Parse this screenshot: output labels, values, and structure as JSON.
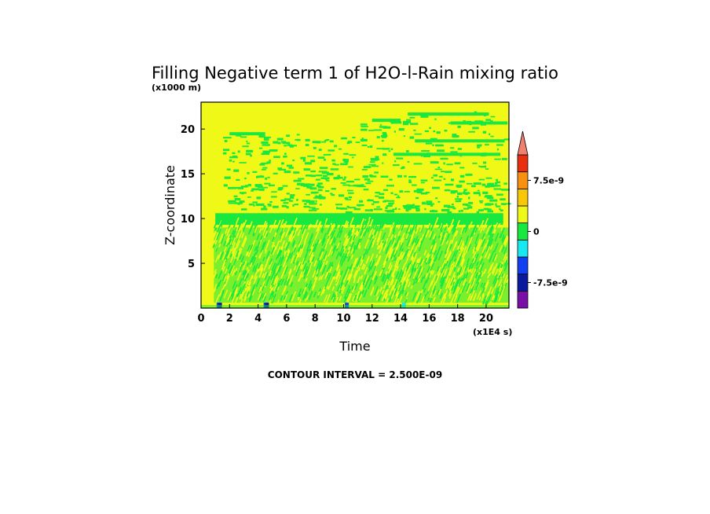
{
  "chart_data": {
    "type": "heatmap",
    "title": "Filling Negative term 1 of H2O-l-Rain mixing ratio",
    "y_scale_label": "(x1000 m)",
    "x_scale_label": "(x1E4 s)",
    "xlabel": "Time",
    "ylabel": "Z-coordinate",
    "xlim": [
      0,
      21.6
    ],
    "ylim": [
      0,
      23
    ],
    "x_ticks": [
      "0",
      "2",
      "4",
      "6",
      "8",
      "10",
      "12",
      "14",
      "16",
      "18",
      "20"
    ],
    "x_tick_values": [
      0,
      2,
      4,
      6,
      8,
      10,
      12,
      14,
      16,
      18,
      20
    ],
    "y_ticks": [
      "5",
      "10",
      "15",
      "20"
    ],
    "y_tick_values": [
      5,
      10,
      15,
      20
    ],
    "contour_interval": "CONTOUR INTERVAL = 2.500E-09",
    "colorbar": {
      "levels": [
        "-1e-8",
        "-7.5e-9",
        "-5e-9",
        "-2.5e-9",
        "0",
        "2.5e-9",
        "5e-9",
        "7.5e-9",
        "1e-8"
      ],
      "colors": [
        "#7a0fa8",
        "#0a1a9e",
        "#1040f0",
        "#18e8f0",
        "#18e840",
        "#f0f818",
        "#f8c808",
        "#f89010",
        "#e83010",
        "#f08070"
      ],
      "labels": [
        "7.5e-9",
        "0",
        "-7.5e-9"
      ],
      "label_values": [
        7.5e-09,
        0,
        -7.5e-09
      ],
      "extend": "max"
    },
    "background_value_color": "#f0f818",
    "band_value_color": "#18e840"
  }
}
